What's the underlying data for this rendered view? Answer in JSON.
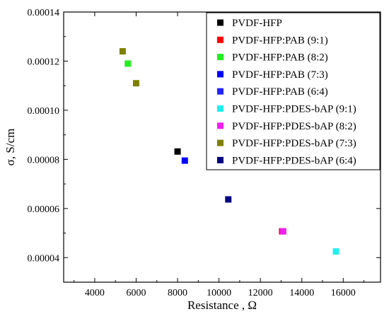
{
  "chart_data": {
    "type": "scatter",
    "xlabel": "Resistance , Ω",
    "ylabel": "σ, S/cm",
    "xlim": [
      2500,
      17800
    ],
    "ylim": [
      3e-05,
      0.00014
    ],
    "xticks": [
      {
        "v": 4000,
        "label": "4000"
      },
      {
        "v": 6000,
        "label": "6000"
      },
      {
        "v": 8000,
        "label": "8000"
      },
      {
        "v": 10000,
        "label": "10000"
      },
      {
        "v": 12000,
        "label": "12000"
      },
      {
        "v": 14000,
        "label": "14000"
      },
      {
        "v": 16000,
        "label": "16000"
      }
    ],
    "yticks": [
      {
        "v": 4e-05,
        "label": "0.00004"
      },
      {
        "v": 6e-05,
        "label": "0.00006"
      },
      {
        "v": 8e-05,
        "label": "0.00008"
      },
      {
        "v": 0.0001,
        "label": "0.00010"
      },
      {
        "v": 0.00012,
        "label": "0.00012"
      },
      {
        "v": 0.00014,
        "label": "0.00014"
      }
    ],
    "legend_position": "top-right",
    "grid": false,
    "series": [
      {
        "name": "PVDF-HFP",
        "color": "#000000",
        "points": [
          [
            8000,
            8.32e-05
          ]
        ]
      },
      {
        "name": "PVDF-HFP:PAB (9:1)",
        "color": "#ff0000",
        "points": [
          [
            13050,
            5.07e-05
          ]
        ]
      },
      {
        "name": "PVDF-HFP:PAB (8:2)",
        "color": "#22ee22",
        "points": [
          [
            5600,
            0.000119
          ]
        ]
      },
      {
        "name": "PVDF-HFP:PAB (7:3)",
        "color": "#0000ff",
        "points": [
          [
            8350,
            7.95e-05
          ]
        ]
      },
      {
        "name": "PVDF-HFP:PAB (6:4)",
        "color": "#2222ff",
        "points": []
      },
      {
        "name": "PVDF-HFP:PDES-bAP (9:1)",
        "color": "#22eeee",
        "points": [
          [
            15650,
            4.25e-05
          ]
        ]
      },
      {
        "name": "PVDF-HFP:PDES-bAP (8:2)",
        "color": "#ee22ee",
        "points": [
          [
            13100,
            5.07e-05
          ]
        ]
      },
      {
        "name": "PVDF-HFP:PDES-bAP (7:3)",
        "color": "#808000",
        "points": [
          [
            5350,
            0.000124
          ],
          [
            6000,
            0.000111
          ]
        ]
      },
      {
        "name": "PVDF-HFP:PDES-bAP (6:4)",
        "color": "#000080",
        "points": [
          [
            10450,
            6.37e-05
          ]
        ]
      }
    ]
  }
}
